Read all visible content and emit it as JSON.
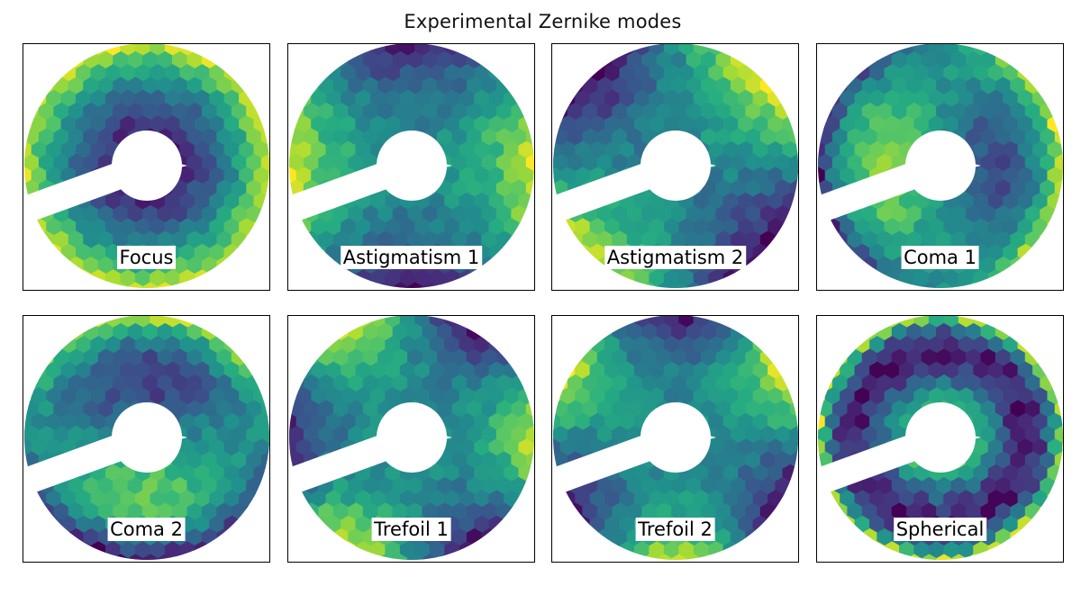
{
  "figure": {
    "title": "Experimental Zernike modes"
  },
  "chart_data": {
    "type": "heatmap",
    "title": "Experimental Zernike modes",
    "colormap": "viridis",
    "colors": {
      "viridis_low": "#440154",
      "viridis_mid": "#21918c",
      "viridis_high": "#fde725",
      "frame": "#000000"
    },
    "grid": "2x4",
    "axes_visible": false,
    "mask": "annular aperture with central obscuration and support-spider slot",
    "panels": [
      {
        "label": "Focus",
        "mode": "defocus"
      },
      {
        "label": "Astigmatism 1",
        "mode": "astigmatism-cos"
      },
      {
        "label": "Astigmatism 2",
        "mode": "astigmatism-sin"
      },
      {
        "label": "Coma 1",
        "mode": "coma-x"
      },
      {
        "label": "Coma 2",
        "mode": "coma-y"
      },
      {
        "label": "Trefoil 1",
        "mode": "trefoil-cos"
      },
      {
        "label": "Trefoil 2",
        "mode": "trefoil-sin"
      },
      {
        "label": "Spherical",
        "mode": "spherical"
      }
    ]
  }
}
